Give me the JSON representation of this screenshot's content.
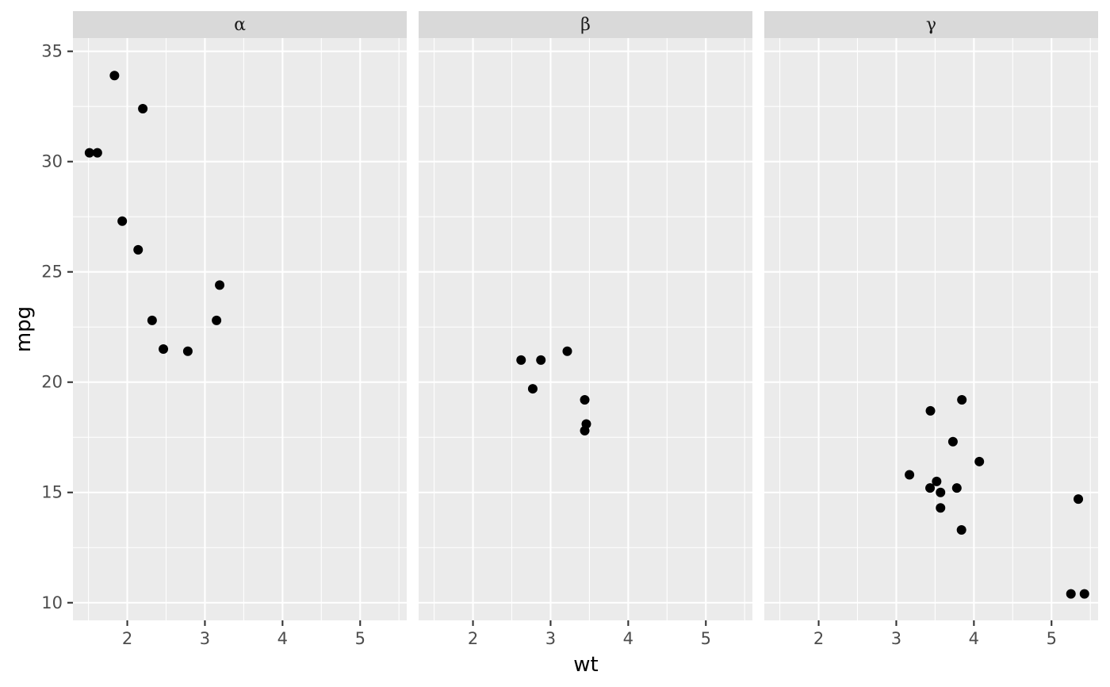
{
  "chart_data": {
    "type": "scatter",
    "xlabel": "wt",
    "ylabel": "mpg",
    "xlim": [
      1.3,
      5.6
    ],
    "ylim": [
      9.2,
      35.6
    ],
    "x_major_ticks": [
      2,
      3,
      4,
      5
    ],
    "x_tick_labels": [
      "2",
      "3",
      "4",
      "5"
    ],
    "y_major_ticks": [
      10,
      15,
      20,
      25,
      30,
      35
    ],
    "y_tick_labels": [
      "10",
      "15",
      "20",
      "25",
      "30",
      "35"
    ],
    "grid": true,
    "legend": "none",
    "point_color": "#000000",
    "panel_color": "#EBEBEB",
    "strip_color": "#D9D9D9",
    "facets": [
      {
        "label": "α",
        "points": [
          {
            "x": 2.32,
            "y": 22.8
          },
          {
            "x": 3.19,
            "y": 24.4
          },
          {
            "x": 3.15,
            "y": 22.8
          },
          {
            "x": 2.2,
            "y": 32.4
          },
          {
            "x": 1.615,
            "y": 30.4
          },
          {
            "x": 1.835,
            "y": 33.9
          },
          {
            "x": 2.465,
            "y": 21.5
          },
          {
            "x": 1.935,
            "y": 27.3
          },
          {
            "x": 2.14,
            "y": 26.0
          },
          {
            "x": 1.513,
            "y": 30.4
          },
          {
            "x": 2.78,
            "y": 21.4
          }
        ]
      },
      {
        "label": "β",
        "points": [
          {
            "x": 2.62,
            "y": 21.0
          },
          {
            "x": 2.875,
            "y": 21.0
          },
          {
            "x": 3.215,
            "y": 21.4
          },
          {
            "x": 3.46,
            "y": 18.1
          },
          {
            "x": 3.44,
            "y": 19.2
          },
          {
            "x": 3.44,
            "y": 17.8
          },
          {
            "x": 2.77,
            "y": 19.7
          }
        ]
      },
      {
        "label": "γ",
        "points": [
          {
            "x": 3.44,
            "y": 18.7
          },
          {
            "x": 3.57,
            "y": 14.3
          },
          {
            "x": 4.07,
            "y": 16.4
          },
          {
            "x": 3.73,
            "y": 17.3
          },
          {
            "x": 3.78,
            "y": 15.2
          },
          {
            "x": 5.25,
            "y": 10.4
          },
          {
            "x": 5.424,
            "y": 10.4
          },
          {
            "x": 5.345,
            "y": 14.7
          },
          {
            "x": 3.52,
            "y": 15.5
          },
          {
            "x": 3.435,
            "y": 15.2
          },
          {
            "x": 3.84,
            "y": 13.3
          },
          {
            "x": 3.845,
            "y": 19.2
          },
          {
            "x": 3.17,
            "y": 15.8
          },
          {
            "x": 3.57,
            "y": 15.0
          }
        ]
      }
    ]
  }
}
